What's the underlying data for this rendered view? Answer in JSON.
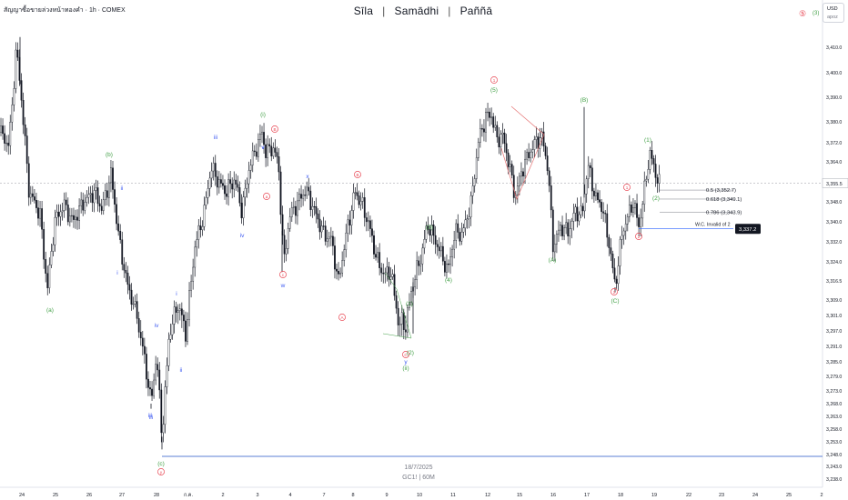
{
  "header": {
    "symbol_title": "สัญญาซื้อขายล่วงหน้าทองคำ · 1h · COMEX",
    "watermark": [
      "Sīla",
      "Samādhi",
      "Paññā"
    ],
    "currency": "USD",
    "currency_sub": "apoz",
    "wave_marks": [
      "⑤",
      "(3)"
    ]
  },
  "footer_watermark": {
    "date": "18/7/2025",
    "symbol": "GC1! | 60M"
  },
  "colors": {
    "candle": "#131722",
    "grid_line": "#5b7fd6",
    "red_label": "#e84855",
    "green_label": "#43a047",
    "blue_label": "#3d5af1",
    "price_tag": "#131722"
  },
  "chart_data": {
    "type": "candlestick",
    "x_tick_labels": [
      "24",
      "25",
      "26",
      "27",
      "28",
      "ก.ค.",
      "2",
      "3",
      "4",
      "7",
      "8",
      "9",
      "10",
      "11",
      "12",
      "15",
      "16",
      "17",
      "18",
      "19",
      "22",
      "23",
      "24",
      "25",
      "2"
    ],
    "y_tick_labels": [
      "3,410.0",
      "3,400.0",
      "3,390.0",
      "3,380.0",
      "3,372.0",
      "3,364.0",
      "3,356.0",
      "3,348.0",
      "3,340.0",
      "3,332.0",
      "3,324.0",
      "3,316.5",
      "3,309.0",
      "3,301.0",
      "3,297.0",
      "3,291.0",
      "3,285.0",
      "3,279.0",
      "3,273.0",
      "3,268.0",
      "3,263.0",
      "3,258.0",
      "3,253.0",
      "3,248.0",
      "3,243.0",
      "3,238.0"
    ],
    "y_ticks": [
      3410,
      3400,
      3390,
      3380,
      3372,
      3364,
      3356,
      3348,
      3340,
      3332,
      3324,
      3316.5,
      3309,
      3301,
      3297,
      3291,
      3285,
      3279,
      3273,
      3268,
      3263,
      3258,
      3253,
      3248,
      3243,
      3238
    ],
    "current_price": "3,355.5",
    "fib_levels": [
      {
        "label": "0.5 (3,352.7)",
        "value": 3352.7
      },
      {
        "label": "0.618 (3,349.1)",
        "value": 3349.1
      },
      {
        "label": "0.786 (3,343.9)",
        "value": 3343.9
      }
    ],
    "invalidation": {
      "label": "W.C. Invalid of 2",
      "value": 3337.2,
      "tag": "3,337.2"
    },
    "support_line": 3248,
    "close_path": [
      [
        0,
        3376
      ],
      [
        10,
        3371
      ],
      [
        18,
        3410
      ],
      [
        24,
        3388
      ],
      [
        32,
        3352
      ],
      [
        44,
        3343
      ],
      [
        52,
        3313
      ],
      [
        60,
        3340
      ],
      [
        70,
        3347
      ],
      [
        80,
        3340
      ],
      [
        92,
        3348
      ],
      [
        104,
        3352
      ],
      [
        112,
        3345
      ],
      [
        122,
        3359
      ],
      [
        132,
        3330
      ],
      [
        140,
        3315
      ],
      [
        150,
        3303
      ],
      [
        158,
        3288
      ],
      [
        166,
        3268
      ],
      [
        172,
        3288
      ],
      [
        178,
        3255
      ],
      [
        186,
        3296
      ],
      [
        196,
        3306
      ],
      [
        204,
        3295
      ],
      [
        214,
        3330
      ],
      [
        224,
        3343
      ],
      [
        232,
        3362
      ],
      [
        240,
        3356
      ],
      [
        248,
        3352
      ],
      [
        258,
        3357
      ],
      [
        266,
        3344
      ],
      [
        274,
        3362
      ],
      [
        282,
        3370
      ],
      [
        288,
        3376
      ],
      [
        292,
        3368
      ],
      [
        300,
        3370
      ],
      [
        306,
        3363
      ],
      [
        312,
        3323
      ],
      [
        318,
        3342
      ],
      [
        326,
        3347
      ],
      [
        336,
        3353
      ],
      [
        346,
        3344
      ],
      [
        356,
        3335
      ],
      [
        364,
        3333
      ],
      [
        372,
        3316
      ],
      [
        380,
        3334
      ],
      [
        390,
        3352
      ],
      [
        398,
        3347
      ],
      [
        406,
        3338
      ],
      [
        414,
        3325
      ],
      [
        422,
        3319
      ],
      [
        430,
        3320
      ],
      [
        438,
        3299
      ],
      [
        446,
        3299
      ],
      [
        454,
        3316
      ],
      [
        462,
        3325
      ],
      [
        470,
        3339
      ],
      [
        478,
        3333
      ],
      [
        486,
        3326
      ],
      [
        492,
        3320
      ],
      [
        500,
        3336
      ],
      [
        508,
        3335
      ],
      [
        518,
        3348
      ],
      [
        526,
        3373
      ],
      [
        534,
        3382
      ],
      [
        540,
        3383
      ],
      [
        546,
        3373
      ],
      [
        552,
        3375
      ],
      [
        558,
        3366
      ],
      [
        566,
        3350
      ],
      [
        574,
        3361
      ],
      [
        582,
        3368
      ],
      [
        590,
        3373
      ],
      [
        596,
        3374
      ],
      [
        602,
        3362
      ],
      [
        608,
        3330
      ],
      [
        616,
        3338
      ],
      [
        624,
        3336
      ],
      [
        632,
        3344
      ],
      [
        640,
        3343
      ],
      [
        646,
        3363
      ],
      [
        654,
        3350
      ],
      [
        662,
        3346
      ],
      [
        670,
        3330
      ],
      [
        676,
        3314
      ],
      [
        684,
        3336
      ],
      [
        690,
        3342
      ],
      [
        696,
        3348
      ],
      [
        702,
        3338
      ],
      [
        708,
        3352
      ],
      [
        714,
        3368
      ],
      [
        720,
        3360
      ],
      [
        726,
        3354
      ]
    ]
  },
  "wave_labels": [
    {
      "text": "(a)",
      "color": "green"
    },
    {
      "text": "(b)",
      "color": "green"
    },
    {
      "text": "ii",
      "color": "blue"
    },
    {
      "text": "i",
      "color": "blue"
    },
    {
      "text": "iii",
      "color": "blue"
    },
    {
      "text": "iv",
      "color": "blue"
    },
    {
      "text": "ii",
      "color": "blue"
    },
    {
      "text": "i",
      "color": "blue"
    },
    {
      "text": "iii",
      "color": "blue"
    },
    {
      "text": "v",
      "color": "blue"
    },
    {
      "text": "(c)",
      "color": "green"
    },
    {
      "text": "y",
      "color": "red"
    },
    {
      "text": "iii",
      "color": "blue"
    },
    {
      "text": "iv",
      "color": "blue"
    },
    {
      "text": "(i)",
      "color": "green"
    },
    {
      "text": "v",
      "color": "blue"
    },
    {
      "text": "B",
      "color": "red"
    },
    {
      "text": "a",
      "color": "red"
    },
    {
      "text": "x",
      "color": "blue"
    },
    {
      "text": "c",
      "color": "red"
    },
    {
      "text": "w",
      "color": "blue"
    },
    {
      "text": "B",
      "color": "red"
    },
    {
      "text": "A",
      "color": "red"
    },
    {
      "text": "C",
      "color": "red"
    },
    {
      "text": "(2)",
      "color": "green"
    },
    {
      "text": "y",
      "color": "blue"
    },
    {
      "text": "(ii)",
      "color": "green"
    },
    {
      "text": "(1)",
      "color": "green"
    },
    {
      "text": "(3)",
      "color": "green"
    },
    {
      "text": "(4)",
      "color": "green"
    },
    {
      "text": "1",
      "color": "red"
    },
    {
      "text": "(5)",
      "color": "green"
    },
    {
      "text": "(A)",
      "color": "green"
    },
    {
      "text": "(B)",
      "color": "green"
    },
    {
      "text": "2",
      "color": "red"
    },
    {
      "text": "(C)",
      "color": "green"
    },
    {
      "text": "1",
      "color": "red"
    },
    {
      "text": "2",
      "color": "red"
    },
    {
      "text": "(1)",
      "color": "green"
    },
    {
      "text": "(2)",
      "color": "green"
    }
  ]
}
